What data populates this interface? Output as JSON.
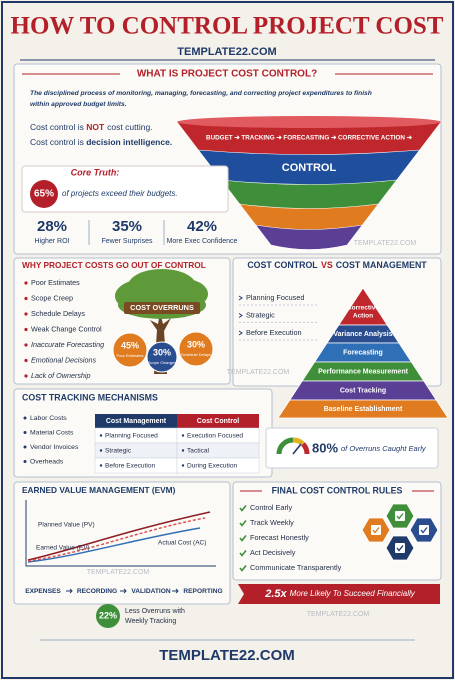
{
  "header": {
    "title": "HOW TO CONTROL PROJECT COST",
    "site": "TEMPLATE22.COM"
  },
  "watermark": "TEMPLATE22.COM",
  "what_is": {
    "heading": "WHAT IS PROJECT COST CONTROL?",
    "definition_lines": [
      "The disciplined process of monitoring, managing, forecasting, and correcting project expenditures to finish",
      "within approved budget limits."
    ],
    "line1": [
      "Cost control is ",
      "NOT",
      "cost cutting."
    ],
    "line2": [
      "Cost control is ",
      "decision intelligence."
    ],
    "funnel_top": "BUDGET ➔ TRACKING ➔ FORECASTING ➔ CORRECTIVE ACTION ➔",
    "funnel_center": "CONTROL"
  },
  "core_truth": {
    "label": "Core Truth:",
    "stat": "65%",
    "text": "of projects exceed their budgets."
  },
  "stats": [
    {
      "value": "28%",
      "label": "Higher ROI"
    },
    {
      "value": "35%",
      "label": "Fewer Surprises"
    },
    {
      "value": "42%",
      "label": "More Exec Confidence"
    }
  ],
  "why": {
    "heading": "WHY PROJECT COSTS GO OUT OF CONTROL",
    "items": [
      "Poor Estimates",
      "Scope Creep",
      "Schedule Delays",
      "Weak Change Control",
      "Inaccurate Forecasting",
      "Emotional Decisions",
      "Lack of Ownership"
    ],
    "tree_label": "COST OVERRUNS",
    "bubbles": [
      {
        "value": "45%",
        "label": "Poor Estimates"
      },
      {
        "value": "30%",
        "label": "Scope Changes"
      },
      {
        "value": "30%",
        "label": "Schedule Delays"
      }
    ]
  },
  "versus": {
    "heading_left": "COST CONTROL",
    "heading_vs": "VS",
    "heading_right": "COST MANAGEMENT",
    "items": [
      "Planning Focused",
      "Strategic",
      "Before Execution"
    ],
    "pyramid_apex": [
      "Corrective",
      "Action"
    ],
    "pyramid_layers": [
      "Variance Analysis",
      "Forecasting",
      "Performance Measurement",
      "Cost Tracking",
      "Baseline Establishment"
    ]
  },
  "tracking": {
    "heading": "COST TRACKING MECHANISMS",
    "items": [
      "Labor Costs",
      "Material Costs",
      "Vendor Invoices",
      "Overheads"
    ],
    "table": {
      "headers": [
        "Cost Management",
        "Cost Control"
      ],
      "rows": [
        [
          "Planning Focused",
          "Execution Focused"
        ],
        [
          "Strategic",
          "Tactical"
        ],
        [
          "Before Execution",
          "During Execution"
        ]
      ]
    },
    "gauge_value": "80%",
    "gauge_text": "of Overruns Caught Early"
  },
  "evm": {
    "heading": "EARNED VALUE MANAGEMENT (EVM)",
    "curves": [
      "Planned Value (PV)",
      "Earned Value (EV)",
      "Actual Cost (AC)"
    ],
    "flow": [
      "EXPENSES",
      "RECORDING",
      "VALIDATION",
      "REPORTING"
    ],
    "stat": "22%",
    "stat_lines": [
      "Less Overruns with",
      "Weekly Tracking"
    ]
  },
  "rules": {
    "heading": "FINAL COST CONTROL RULES",
    "items": [
      "Control Early",
      "Track Weekly",
      "Forecast Honestly",
      "Act Decisively",
      "Communicate Transparently"
    ],
    "banner_value": "2.5x",
    "banner_text": "More Likely To Succeed Financially"
  },
  "footer": {
    "site": "TEMPLATE22.COM"
  }
}
